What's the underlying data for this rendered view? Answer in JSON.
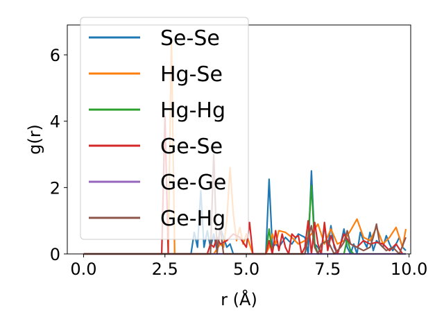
{
  "chart_data": {
    "type": "line",
    "xlabel": "r (Å)",
    "ylabel": "g(r)",
    "xlim": [
      -0.5,
      10.05
    ],
    "ylim": [
      0,
      6.9
    ],
    "xticks": [
      0.0,
      2.5,
      5.0,
      7.5,
      10.0
    ],
    "xtick_labels": [
      "0.0",
      "2.5",
      "5.0",
      "7.5",
      "10.0"
    ],
    "yticks": [
      0,
      2,
      4,
      6
    ],
    "ytick_labels": [
      "0",
      "2",
      "4",
      "6"
    ],
    "grid": false,
    "legend_position": "top-left",
    "series": [
      {
        "name": "Se-Se",
        "color": "#1f77b4",
        "x": [
          0,
          0.5,
          1.0,
          1.5,
          2.0,
          2.5,
          3.0,
          3.3,
          3.4,
          3.5,
          3.6,
          3.7,
          3.8,
          3.9,
          4.0,
          4.1,
          4.2,
          4.3,
          4.4,
          4.5,
          4.6,
          4.7,
          4.8,
          4.9,
          5.0,
          5.1,
          5.2,
          5.3,
          5.4,
          5.5,
          5.6,
          5.7,
          5.8,
          5.9,
          6.0,
          6.2,
          6.4,
          6.6,
          6.8,
          6.9,
          7.0,
          7.1,
          7.2,
          7.3,
          7.4,
          7.5,
          7.6,
          7.7,
          7.8,
          7.9,
          8.0,
          8.1,
          8.2,
          8.3,
          8.4,
          8.5,
          8.6,
          8.7,
          8.8,
          8.9,
          9.0,
          9.1,
          9.2,
          9.3,
          9.4,
          9.5,
          9.6,
          9.7,
          9.8,
          9.9
        ],
        "y": [
          0,
          0,
          0,
          0,
          0,
          0,
          0,
          0,
          0.65,
          0.2,
          1.9,
          0.2,
          0.7,
          0.2,
          0.6,
          0.1,
          0.8,
          0.5,
          0.2,
          0.3,
          0,
          0,
          0,
          0,
          0,
          0,
          0,
          0,
          0,
          0,
          0,
          2.25,
          0.2,
          0.3,
          0.2,
          0.5,
          0.3,
          0.6,
          0.5,
          0,
          2.5,
          0.3,
          0.2,
          0,
          0.85,
          0.2,
          0.85,
          0.2,
          0,
          0.3,
          0.75,
          0.2,
          0,
          0.3,
          0,
          0.65,
          0.4,
          0.2,
          0.65,
          0.1,
          0.4,
          0.3,
          0.2,
          0.55,
          0.3,
          0.1,
          0.3,
          0.5,
          0.2,
          0.1
        ]
      },
      {
        "name": "Hg-Se",
        "color": "#ff7f0e",
        "x": [
          0,
          0.5,
          1.0,
          1.5,
          2.0,
          2.5,
          2.6,
          2.7,
          2.8,
          2.9,
          3.0,
          3.5,
          4.0,
          4.2,
          4.3,
          4.4,
          4.5,
          4.6,
          4.7,
          4.8,
          4.9,
          5.0,
          5.1,
          5.2,
          5.4,
          5.6,
          5.7,
          5.8,
          5.9,
          6.0,
          6.2,
          6.4,
          6.6,
          6.8,
          7.0,
          7.2,
          7.4,
          7.6,
          7.8,
          8.0,
          8.2,
          8.4,
          8.6,
          8.8,
          9.0,
          9.2,
          9.4,
          9.6,
          9.8,
          9.9
        ],
        "y": [
          0,
          0,
          0,
          0,
          0,
          0,
          0,
          6.5,
          0,
          0,
          0,
          0,
          0,
          0.3,
          0.2,
          1.0,
          2.6,
          1.2,
          0.4,
          0.8,
          0.3,
          0.6,
          0.3,
          0,
          0,
          0,
          0.2,
          0.6,
          0.3,
          0.7,
          0.65,
          0.5,
          0.3,
          0.4,
          0.6,
          0.9,
          0.3,
          0.75,
          0.3,
          0.4,
          0.7,
          1.05,
          0.5,
          0.4,
          0.8,
          0.3,
          0.5,
          0.8,
          0.2,
          0.75
        ]
      },
      {
        "name": "Hg-Hg",
        "color": "#2ca02c",
        "x": [
          0,
          1.0,
          2.0,
          3.0,
          4.0,
          5.0,
          5.5,
          5.6,
          5.7,
          5.8,
          6.0,
          6.5,
          6.8,
          6.9,
          7.0,
          7.1,
          7.2,
          7.5,
          8.0,
          8.1,
          8.2,
          8.3,
          8.5,
          9.0,
          9.5,
          9.9
        ],
        "y": [
          0,
          0,
          0,
          0,
          0,
          0,
          0,
          0,
          0.75,
          0,
          0,
          0,
          0,
          0.5,
          2.05,
          0.3,
          0,
          0,
          0,
          0.45,
          0.1,
          0,
          0,
          0,
          0,
          0
        ]
      },
      {
        "name": "Ge-Se",
        "color": "#d62728",
        "x": [
          0,
          0.5,
          1.0,
          1.5,
          2.0,
          2.3,
          2.4,
          2.5,
          2.6,
          2.7,
          3.0,
          3.5,
          3.8,
          3.9,
          4.0,
          4.1,
          4.2,
          4.4,
          4.6,
          4.8,
          5.0,
          5.1,
          5.2,
          5.4,
          5.6,
          5.7,
          5.8,
          5.9,
          6.0,
          6.1,
          6.2,
          6.3,
          6.4,
          6.5,
          6.6,
          6.7,
          6.8,
          6.9,
          7.0,
          7.1,
          7.2,
          7.3,
          7.4,
          7.5,
          7.6,
          7.8,
          8.0,
          8.2,
          8.4,
          8.6,
          8.8,
          9.0,
          9.2,
          9.4,
          9.6,
          9.8
        ],
        "y": [
          0,
          0,
          0,
          0,
          0,
          0,
          0,
          4.15,
          0,
          0,
          0,
          0,
          0,
          0.3,
          0.2,
          0.5,
          0.3,
          0.4,
          0.6,
          0.5,
          0.2,
          0.95,
          0,
          0,
          0,
          0.4,
          0,
          0.7,
          0.1,
          0.6,
          0.2,
          0,
          0.6,
          0.5,
          0.55,
          0,
          0.2,
          1.0,
          0,
          0.95,
          0.3,
          0,
          0.95,
          0.1,
          0.55,
          0,
          0.6,
          0.3,
          0.2,
          0.4,
          0.3,
          0.35,
          0.3,
          0.1,
          0.3,
          0
        ]
      },
      {
        "name": "Ge-Ge",
        "color": "#9467bd",
        "x": [
          0,
          1.0,
          2.0,
          3.0,
          4.0,
          5.0,
          6.0,
          7.0,
          8.0,
          9.0,
          9.9
        ],
        "y": [
          0,
          0,
          0,
          0,
          0,
          0,
          0,
          0,
          0,
          0,
          0
        ]
      },
      {
        "name": "Ge-Hg",
        "color": "#8c564b",
        "x": [
          0,
          0.5,
          1.0,
          1.5,
          2.0,
          2.5,
          3.0,
          3.5,
          3.9,
          4.0,
          4.1,
          4.2,
          4.3,
          4.5,
          5.0,
          5.5,
          6.0,
          6.5,
          6.8,
          6.9,
          7.0,
          7.1,
          7.2,
          7.3,
          7.5,
          7.7,
          7.9,
          8.0,
          8.1,
          8.2,
          8.4,
          8.6,
          8.8,
          8.9,
          9.0,
          9.1,
          9.3,
          9.5,
          9.7,
          9.9
        ],
        "y": [
          0,
          0,
          0,
          0,
          0,
          0,
          0,
          0,
          0,
          3.0,
          0,
          0.8,
          0,
          0,
          0,
          0,
          0,
          0,
          0,
          0.5,
          0.85,
          0.2,
          0,
          0.3,
          0.4,
          0,
          0.2,
          0.35,
          0.7,
          0.3,
          0.2,
          0.1,
          0.2,
          0.5,
          0.9,
          0.3,
          0.1,
          0.2,
          0,
          0.5
        ]
      }
    ]
  }
}
